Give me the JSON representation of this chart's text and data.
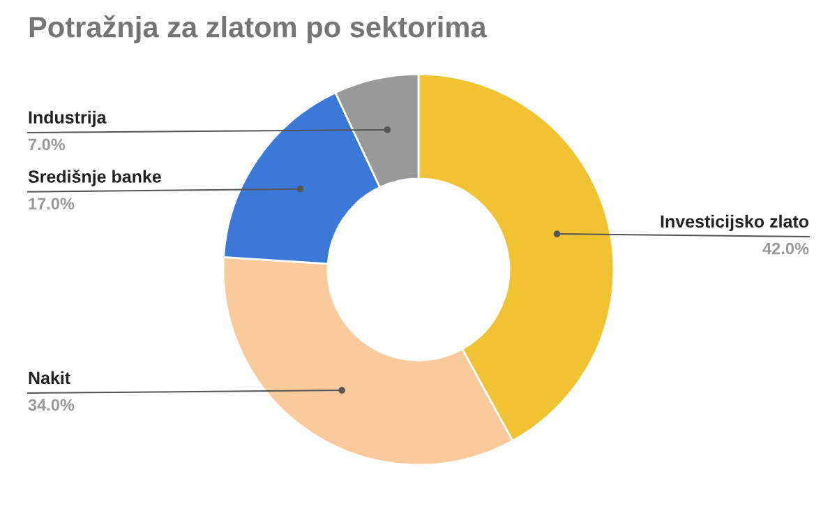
{
  "chart_data": {
    "type": "donut",
    "title": "Potražnja za zlatom po sektorima",
    "categories": [
      "Investicijsko zlato",
      "Nakit",
      "Središnje banke",
      "Industrija"
    ],
    "values": [
      42,
      34,
      17,
      7
    ],
    "value_labels": [
      "42.0%",
      "34.0%",
      "17.0%",
      "7.0%"
    ],
    "colors": [
      "#f1c232",
      "#f9cb9c",
      "#3c78d8",
      "#999999"
    ],
    "legend": false
  }
}
